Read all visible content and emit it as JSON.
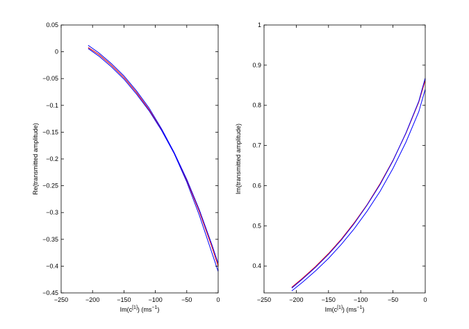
{
  "chart_data": [
    {
      "type": "line",
      "title": "",
      "xlabel_main": "Im(c",
      "xlabel_sup": "[1]",
      "xlabel_tail": ") (ms",
      "xlabel_unit_sup": "−1",
      "xlabel_close": ")",
      "ylabel": "Re(transmitted amplitude)",
      "xlim": [
        -250,
        0
      ],
      "ylim": [
        -0.45,
        0.05
      ],
      "xticks": [
        -250,
        -200,
        -150,
        -100,
        -50,
        0
      ],
      "xtick_labels": [
        "−250",
        "−200",
        "−150",
        "−100",
        "−50",
        "0"
      ],
      "yticks": [
        -0.45,
        -0.4,
        -0.35,
        -0.3,
        -0.25,
        -0.2,
        -0.15,
        -0.1,
        -0.05,
        0,
        0.05
      ],
      "ytick_labels": [
        "−0.45",
        "−0.4",
        "−0.35",
        "−0.3",
        "−0.25",
        "−0.2",
        "−0.15",
        "−0.1",
        "−0.05",
        "0",
        "0.05"
      ],
      "grid": false,
      "series": [
        {
          "color": "#ff0000",
          "x": [
            -207,
            -190,
            -170,
            -150,
            -130,
            -110,
            -90,
            -70,
            -50,
            -30,
            -10,
            0
          ],
          "y": [
            0.008,
            -0.005,
            -0.025,
            -0.048,
            -0.076,
            -0.108,
            -0.146,
            -0.19,
            -0.24,
            -0.298,
            -0.364,
            -0.4
          ]
        },
        {
          "color": "#0000ff",
          "x": [
            -207,
            -190,
            -170,
            -150,
            -130,
            -110,
            -90,
            -70,
            -50,
            -30,
            -10,
            0
          ],
          "y": [
            0.012,
            -0.002,
            -0.022,
            -0.045,
            -0.073,
            -0.105,
            -0.144,
            -0.188,
            -0.238,
            -0.295,
            -0.36,
            -0.395
          ]
        },
        {
          "color": "#0000ff",
          "x": [
            -207,
            -190,
            -170,
            -150,
            -130,
            -110,
            -90,
            -70,
            -50,
            -30,
            -10,
            0
          ],
          "y": [
            0.006,
            -0.008,
            -0.028,
            -0.051,
            -0.079,
            -0.11,
            -0.147,
            -0.19,
            -0.243,
            -0.305,
            -0.375,
            -0.41
          ]
        }
      ]
    },
    {
      "type": "line",
      "title": "",
      "xlabel_main": "Im(c",
      "xlabel_sup": "[1]",
      "xlabel_tail": ") (ms",
      "xlabel_unit_sup": "−1",
      "xlabel_close": ")",
      "ylabel": "Im(transmitted amplitude)",
      "xlim": [
        -250,
        0
      ],
      "ylim": [
        0.333,
        1
      ],
      "xticks": [
        -250,
        -200,
        -150,
        -100,
        -50,
        0
      ],
      "xtick_labels": [
        "−250",
        "−200",
        "−150",
        "−100",
        "−50",
        "0"
      ],
      "yticks": [
        0.4,
        0.5,
        0.6,
        0.7,
        0.8,
        0.9,
        1
      ],
      "ytick_labels": [
        "0.4",
        "0.5",
        "0.6",
        "0.7",
        "0.8",
        "0.9",
        "1"
      ],
      "grid": false,
      "series": [
        {
          "color": "#ff0000",
          "x": [
            -207,
            -190,
            -170,
            -150,
            -130,
            -110,
            -90,
            -70,
            -50,
            -30,
            -10,
            0
          ],
          "y": [
            0.347,
            0.37,
            0.399,
            0.431,
            0.467,
            0.508,
            0.553,
            0.605,
            0.663,
            0.73,
            0.808,
            0.862
          ]
        },
        {
          "color": "#0000ff",
          "x": [
            -207,
            -190,
            -170,
            -150,
            -130,
            -110,
            -90,
            -70,
            -50,
            -30,
            -10,
            0
          ],
          "y": [
            0.345,
            0.368,
            0.397,
            0.429,
            0.465,
            0.506,
            0.552,
            0.603,
            0.662,
            0.731,
            0.81,
            0.868
          ]
        },
        {
          "color": "#0000ff",
          "x": [
            -207,
            -190,
            -170,
            -150,
            -130,
            -110,
            -90,
            -70,
            -50,
            -30,
            -10,
            0
          ],
          "y": [
            0.338,
            0.36,
            0.388,
            0.419,
            0.454,
            0.493,
            0.537,
            0.586,
            0.643,
            0.708,
            0.784,
            0.84
          ]
        }
      ]
    }
  ]
}
